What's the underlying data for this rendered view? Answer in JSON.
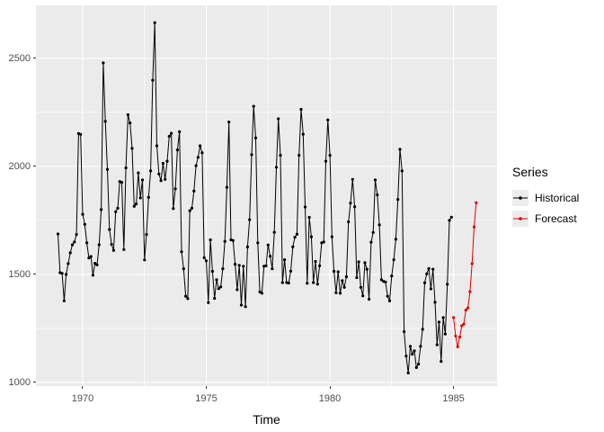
{
  "figure": {
    "x_axis_title": "Time"
  },
  "legend": {
    "title": "Series",
    "items": [
      {
        "label": "Historical",
        "color": "#000000"
      },
      {
        "label": "Forecast",
        "color": "#E10000"
      }
    ]
  },
  "colors": {
    "panel_background": "#EBEBEB",
    "gridline": "#FFFFFF",
    "tick_text": "#4D4D4D",
    "tick_mark": "#333333",
    "historical": "#000000",
    "forecast": "#E10000",
    "legend_key_background": "#ECECEC"
  },
  "chart_data": {
    "type": "line",
    "title": "",
    "xlabel": "Time",
    "ylabel": "",
    "frequency": 12,
    "axes": {
      "xlim": [
        1968.11,
        1986.76
      ],
      "ylim": [
        983,
        2745
      ],
      "x_ticks": [
        1970,
        1975,
        1980,
        1985
      ],
      "x_tick_labels": [
        "1970",
        "1975",
        "1980",
        "1985"
      ],
      "y_ticks": [
        1000,
        1500,
        2000,
        2500
      ],
      "y_tick_labels": [
        "1000",
        "1500",
        "2000",
        "2500"
      ],
      "x_minor": [
        1972.5,
        1977.5,
        1982.5
      ],
      "y_minor": [
        1250,
        1750,
        2250
      ],
      "grid": true,
      "legend_position": "right"
    },
    "series": [
      {
        "name": "Historical",
        "color": "#000000",
        "start": 1969.0,
        "values": [
          1687,
          1508,
          1505,
          1378,
          1500,
          1550,
          1600,
          1637,
          1650,
          1685,
          2152,
          2148,
          1778,
          1732,
          1646,
          1576,
          1583,
          1496,
          1551,
          1544,
          1637,
          1800,
          2479,
          2208,
          1986,
          1708,
          1639,
          1611,
          1790,
          1806,
          1930,
          1926,
          1615,
          1993,
          2239,
          2201,
          2083,
          1815,
          1826,
          1970,
          1854,
          1937,
          1567,
          1685,
          1857,
          1979,
          2399,
          2665,
          2095,
          1965,
          1934,
          2014,
          1940,
          2024,
          2139,
          2153,
          1805,
          1896,
          2076,
          2160,
          1605,
          1526,
          1399,
          1388,
          1795,
          1806,
          1886,
          2003,
          2042,
          2095,
          2063,
          1577,
          1563,
          1369,
          1660,
          1514,
          1389,
          1475,
          1434,
          1442,
          1526,
          1653,
          1903,
          2205,
          1660,
          1657,
          1547,
          1429,
          1542,
          1358,
          1538,
          1351,
          1628,
          1753,
          2054,
          2278,
          2132,
          1646,
          1419,
          1413,
          1538,
          1540,
          1636,
          1584,
          1526,
          1695,
          1996,
          2220,
          2051,
          1462,
          1568,
          1462,
          1460,
          1515,
          1628,
          1672,
          1686,
          2051,
          2264,
          2149,
          1812,
          1459,
          1764,
          1674,
          1462,
          1560,
          1455,
          1540,
          1646,
          1650,
          2024,
          2215,
          2051,
          1674,
          1514,
          1415,
          1512,
          1413,
          1471,
          1440,
          1489,
          1743,
          1830,
          1940,
          1813,
          1485,
          1558,
          1440,
          1401,
          1554,
          1524,
          1385,
          1649,
          1694,
          1937,
          1868,
          1729,
          1475,
          1468,
          1465,
          1399,
          1378,
          1493,
          1568,
          1663,
          1847,
          2079,
          1979,
          1235,
          1122,
          1044,
          1167,
          1131,
          1146,
          1069,
          1085,
          1167,
          1246,
          1461,
          1503,
          1527,
          1433,
          1524,
          1371,
          1174,
          1279,
          1097,
          1300,
          1224,
          1454,
          1750,
          1765
        ]
      },
      {
        "name": "Forecast",
        "color": "#E10000",
        "start": 1985.0,
        "values": [
          1300,
          1215,
          1165,
          1210,
          1262,
          1270,
          1335,
          1345,
          1420,
          1550,
          1720,
          1832
        ]
      }
    ]
  }
}
